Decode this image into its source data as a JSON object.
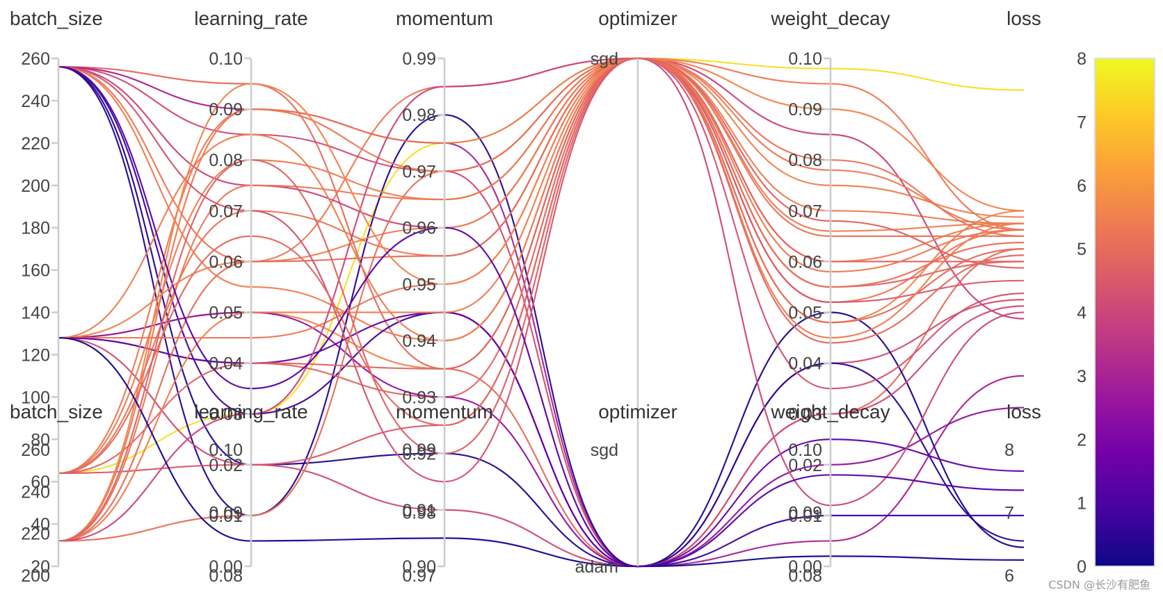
{
  "chart_data": {
    "type": "parallel-coordinates",
    "axes": [
      {
        "key": "batch_size",
        "label": "batch_size",
        "range": [
          20,
          260
        ],
        "ticks": [
          20,
          40,
          60,
          80,
          100,
          120,
          140,
          160,
          180,
          200,
          220,
          240,
          260
        ]
      },
      {
        "key": "learning_rate",
        "label": "learning_rate",
        "range": [
          0.0,
          0.1
        ],
        "ticks": [
          "0.00",
          "0.01",
          "0.02",
          "0.03",
          "0.04",
          "0.05",
          "0.06",
          "0.07",
          "0.08",
          "0.09",
          "0.10"
        ]
      },
      {
        "key": "momentum",
        "label": "momentum",
        "range": [
          0.9,
          0.99
        ],
        "ticks": [
          "0.90",
          "0.91",
          "0.92",
          "0.93",
          "0.94",
          "0.95",
          "0.96",
          "0.97",
          "0.98",
          "0.99"
        ]
      },
      {
        "key": "optimizer",
        "label": "optimizer",
        "categories": [
          "sgd",
          "adam"
        ]
      },
      {
        "key": "weight_decay",
        "label": "weight_decay",
        "range": [
          0.0,
          0.1
        ],
        "ticks": [
          "0.00",
          "0.01",
          "0.02",
          "0.03",
          "0.04",
          "0.05",
          "0.06",
          "0.07",
          "0.08",
          "0.09",
          "0.10"
        ]
      },
      {
        "key": "loss",
        "label": "loss",
        "range": [
          0,
          8
        ],
        "ticks": [
          0,
          1,
          2,
          3,
          4,
          5,
          6,
          7,
          8
        ]
      }
    ],
    "ghost_ticks": {
      "batch_size": [
        "200",
        "220",
        "240",
        "260"
      ],
      "learning_rate": [
        "0.08",
        "0.09",
        "0.10"
      ],
      "momentum": [
        "0.97",
        "0.98",
        "0.99"
      ],
      "weight_decay": [
        "0.08",
        "0.09",
        "0.10"
      ],
      "loss": [
        "6",
        "7",
        "8"
      ]
    },
    "colorscale": [
      "#0d0887",
      "#46039f",
      "#7201a8",
      "#9c179e",
      "#bd3786",
      "#d8576b",
      "#ed7953",
      "#fb9f3a",
      "#fdca26",
      "#f0f921"
    ],
    "colorbar": {
      "range": [
        0,
        8
      ],
      "ticks": [
        0,
        1,
        2,
        3,
        4,
        5,
        6,
        7,
        8
      ]
    },
    "lines": [
      {
        "batch_size": 64,
        "learning_rate": 0.03,
        "momentum": 0.975,
        "optimizer": "sgd",
        "weight_decay": 0.098,
        "loss": 7.5
      },
      {
        "batch_size": 256,
        "learning_rate": 0.06,
        "momentum": 0.985,
        "optimizer": "sgd",
        "weight_decay": 0.052,
        "loss": 5.3
      },
      {
        "batch_size": 256,
        "learning_rate": 0.095,
        "momentum": 0.935,
        "optimizer": "adam",
        "weight_decay": 0.03,
        "loss": 5.0
      },
      {
        "batch_size": 256,
        "learning_rate": 0.085,
        "momentum": 0.97,
        "optimizer": "adam",
        "weight_decay": 0.04,
        "loss": 4.2
      },
      {
        "batch_size": 256,
        "learning_rate": 0.09,
        "momentum": 0.975,
        "optimizer": "adam",
        "weight_decay": 0.005,
        "loss": 3.0
      },
      {
        "batch_size": 256,
        "learning_rate": 0.055,
        "momentum": 0.94,
        "optimizer": "sgd",
        "weight_decay": 0.07,
        "loss": 5.4
      },
      {
        "batch_size": 256,
        "learning_rate": 0.01,
        "momentum": 0.98,
        "optimizer": "adam",
        "weight_decay": 0.04,
        "loss": 0.4
      },
      {
        "batch_size": 256,
        "learning_rate": 0.02,
        "momentum": 0.92,
        "optimizer": "adam",
        "weight_decay": 0.05,
        "loss": 0.3
      },
      {
        "batch_size": 256,
        "learning_rate": 0.03,
        "momentum": 0.945,
        "optimizer": "adam",
        "weight_decay": 0.01,
        "loss": 0.8
      },
      {
        "batch_size": 256,
        "learning_rate": 0.075,
        "momentum": 0.96,
        "optimizer": "sgd",
        "weight_decay": 0.085,
        "loss": 3.9
      },
      {
        "batch_size": 128,
        "learning_rate": 0.05,
        "momentum": 0.935,
        "optimizer": "sgd",
        "weight_decay": 0.048,
        "loss": 5.6
      },
      {
        "batch_size": 128,
        "learning_rate": 0.04,
        "momentum": 0.93,
        "optimizer": "sgd",
        "weight_decay": 0.055,
        "loss": 4.8
      },
      {
        "batch_size": 128,
        "learning_rate": 0.05,
        "momentum": 0.93,
        "optimizer": "adam",
        "weight_decay": 0.02,
        "loss": 2.5
      },
      {
        "batch_size": 128,
        "learning_rate": 0.02,
        "momentum": 0.91,
        "optimizer": "adam",
        "weight_decay": 0.03,
        "loss": 4.1
      },
      {
        "batch_size": 128,
        "learning_rate": 0.045,
        "momentum": 0.95,
        "optimizer": "sgd",
        "weight_decay": 0.065,
        "loss": 5.2
      },
      {
        "batch_size": 128,
        "learning_rate": 0.06,
        "momentum": 0.96,
        "optimizer": "sgd",
        "weight_decay": 0.075,
        "loss": 5.5
      },
      {
        "batch_size": 128,
        "learning_rate": 0.04,
        "momentum": 0.945,
        "optimizer": "adam",
        "weight_decay": 0.025,
        "loss": 1.5
      },
      {
        "batch_size": 64,
        "learning_rate": 0.08,
        "momentum": 0.965,
        "optimizer": "sgd",
        "weight_decay": 0.06,
        "loss": 5.4
      },
      {
        "batch_size": 64,
        "learning_rate": 0.09,
        "momentum": 0.975,
        "optimizer": "sgd",
        "weight_decay": 0.095,
        "loss": 5.3
      },
      {
        "batch_size": 64,
        "learning_rate": 0.07,
        "momentum": 0.955,
        "optimizer": "sgd",
        "weight_decay": 0.08,
        "loss": 5.2
      },
      {
        "batch_size": 64,
        "learning_rate": 0.04,
        "momentum": 0.935,
        "optimizer": "sgd",
        "weight_decay": 0.06,
        "loss": 4.8
      },
      {
        "batch_size": 64,
        "learning_rate": 0.02,
        "momentum": 0.925,
        "optimizer": "sgd",
        "weight_decay": 0.052,
        "loss": 4.5
      },
      {
        "batch_size": 32,
        "learning_rate": 0.09,
        "momentum": 0.97,
        "optimizer": "sgd",
        "weight_decay": 0.078,
        "loss": 5.3
      },
      {
        "batch_size": 32,
        "learning_rate": 0.075,
        "momentum": 0.965,
        "optimizer": "sgd",
        "weight_decay": 0.058,
        "loss": 5.3
      },
      {
        "batch_size": 32,
        "learning_rate": 0.06,
        "momentum": 0.955,
        "optimizer": "sgd",
        "weight_decay": 0.048,
        "loss": 5.0
      },
      {
        "batch_size": 32,
        "learning_rate": 0.05,
        "momentum": 0.945,
        "optimizer": "sgd",
        "weight_decay": 0.066,
        "loss": 5.4
      },
      {
        "batch_size": 32,
        "learning_rate": 0.01,
        "momentum": 0.97,
        "optimizer": "sgd",
        "weight_decay": 0.055,
        "loss": 5.1
      },
      {
        "batch_size": 32,
        "learning_rate": 0.03,
        "momentum": 0.985,
        "optimizer": "sgd",
        "weight_decay": 0.012,
        "loss": 4.0
      },
      {
        "batch_size": 256,
        "learning_rate": 0.07,
        "momentum": 0.915,
        "optimizer": "sgd",
        "weight_decay": 0.035,
        "loss": 4.3
      },
      {
        "batch_size": 128,
        "learning_rate": 0.085,
        "momentum": 0.94,
        "optimizer": "sgd",
        "weight_decay": 0.045,
        "loss": 5.4
      },
      {
        "batch_size": 32,
        "learning_rate": 0.095,
        "momentum": 0.95,
        "optimizer": "sgd",
        "weight_decay": 0.09,
        "loss": 5.6
      },
      {
        "batch_size": 64,
        "learning_rate": 0.065,
        "momentum": 0.925,
        "optimizer": "sgd",
        "weight_decay": 0.044,
        "loss": 4.9
      },
      {
        "batch_size": 128,
        "learning_rate": 0.005,
        "momentum": 0.905,
        "optimizer": "adam",
        "weight_decay": 0.002,
        "loss": 0.1
      },
      {
        "batch_size": 256,
        "learning_rate": 0.035,
        "momentum": 0.96,
        "optimizer": "adam",
        "weight_decay": 0.018,
        "loss": 1.2
      },
      {
        "batch_size": 32,
        "learning_rate": 0.08,
        "momentum": 0.92,
        "optimizer": "sgd",
        "weight_decay": 0.068,
        "loss": 4.7
      }
    ]
  },
  "watermark": "CSDN @长沙有肥鱼"
}
